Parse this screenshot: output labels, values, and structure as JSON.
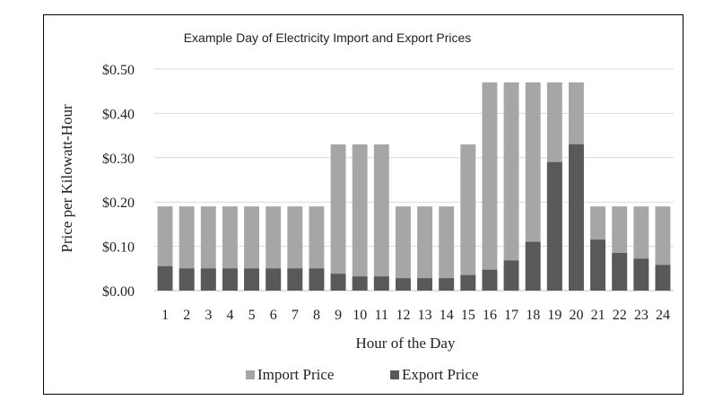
{
  "chart_data": {
    "type": "bar",
    "stacking": "overlay",
    "title": "Example Day of Electricity  Import and Export Prices",
    "xlabel": "Hour of the Day",
    "ylabel": "Price per Kilowatt-Hour",
    "ylim": [
      0,
      0.5
    ],
    "yticks": [
      "$0.00",
      "$0.10",
      "$0.20",
      "$0.30",
      "$0.40",
      "$0.50"
    ],
    "ytick_values": [
      0,
      0.1,
      0.2,
      0.3,
      0.4,
      0.5
    ],
    "grid": true,
    "legend_position": "bottom",
    "categories": [
      "1",
      "2",
      "3",
      "4",
      "5",
      "6",
      "7",
      "8",
      "9",
      "10",
      "11",
      "12",
      "13",
      "14",
      "15",
      "16",
      "17",
      "18",
      "19",
      "20",
      "21",
      "22",
      "23",
      "24"
    ],
    "series": [
      {
        "name": "Import Price",
        "color": "#a6a6a6",
        "values": [
          0.19,
          0.19,
          0.19,
          0.19,
          0.19,
          0.19,
          0.19,
          0.19,
          0.33,
          0.33,
          0.33,
          0.19,
          0.19,
          0.19,
          0.33,
          0.47,
          0.47,
          0.47,
          0.47,
          0.47,
          0.19,
          0.19,
          0.19,
          0.19
        ]
      },
      {
        "name": "Export Price",
        "color": "#595959",
        "values": [
          0.055,
          0.05,
          0.05,
          0.05,
          0.05,
          0.05,
          0.05,
          0.05,
          0.038,
          0.032,
          0.032,
          0.028,
          0.028,
          0.028,
          0.035,
          0.047,
          0.068,
          0.11,
          0.29,
          0.33,
          0.115,
          0.085,
          0.072,
          0.058
        ]
      }
    ]
  }
}
